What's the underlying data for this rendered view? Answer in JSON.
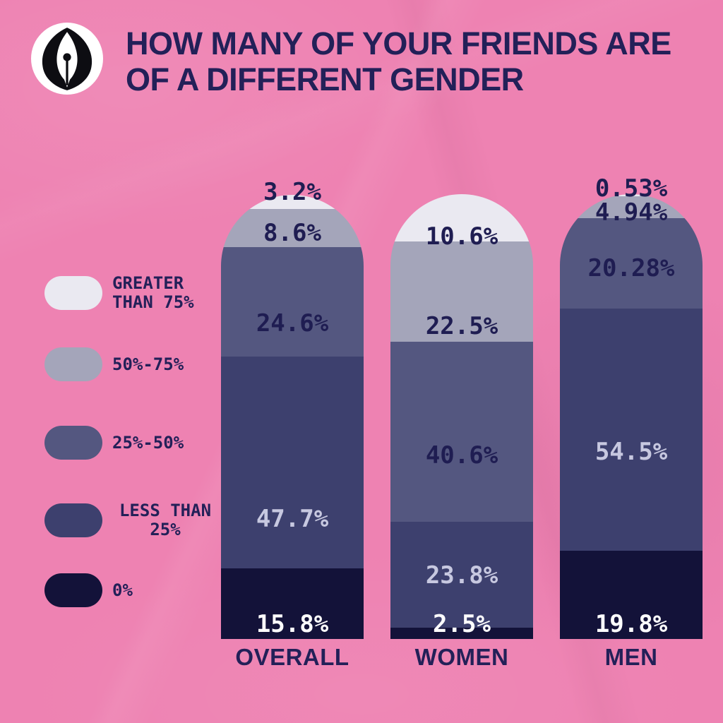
{
  "header": {
    "logo_icon": "pen-nib-icon",
    "title_line1": "HOW MANY OF YOUR FRIENDS ARE",
    "title_line2": "OF A DIFFERENT GENDER"
  },
  "colors": {
    "background": "#ee82b2",
    "title": "#232058",
    "label_on_light_segment": "#1f1d52",
    "label_on_dark_segment": "#c7c8e0",
    "label_on_navy_segment": "#ffffff",
    "logo_circle": "#ffffff",
    "logo_nib": "#0d0d12"
  },
  "legend": {
    "items": [
      {
        "line1": "GREATER",
        "line2": "THAN 75%",
        "color": "#eae9f1"
      },
      {
        "line1": "50%-75%",
        "line2": "",
        "color": "#a4a5ba"
      },
      {
        "line1": "25%-50%",
        "line2": "",
        "color": "#545780"
      },
      {
        "line1": "LESS THAN",
        "line2": "25%",
        "color": "#3d406e"
      },
      {
        "line1": "0%",
        "line2": "",
        "color": "#131239"
      }
    ]
  },
  "chart_data": {
    "type": "bar",
    "stacked": true,
    "orientation": "vertical",
    "title": "HOW MANY OF YOUR FRIENDS ARE OF A DIFFERENT GENDER",
    "categories": [
      "OVERALL",
      "WOMEN",
      "MEN"
    ],
    "series": [
      {
        "name": "GREATER THAN 75%",
        "color": "#eae9f1",
        "values": [
          3.2,
          10.6,
          0.53
        ]
      },
      {
        "name": "50%-75%",
        "color": "#a4a5ba",
        "values": [
          8.6,
          22.5,
          4.94
        ]
      },
      {
        "name": "25%-50%",
        "color": "#545780",
        "values": [
          24.6,
          40.6,
          20.28
        ]
      },
      {
        "name": "LESS THAN 25%",
        "color": "#3d406e",
        "values": [
          47.7,
          23.8,
          54.5
        ]
      },
      {
        "name": "0%",
        "color": "#131239",
        "values": [
          15.8,
          2.5,
          19.8
        ]
      }
    ],
    "value_suffix": "%",
    "ylim": [
      0,
      100
    ],
    "grid": false,
    "legend_position": "left"
  }
}
